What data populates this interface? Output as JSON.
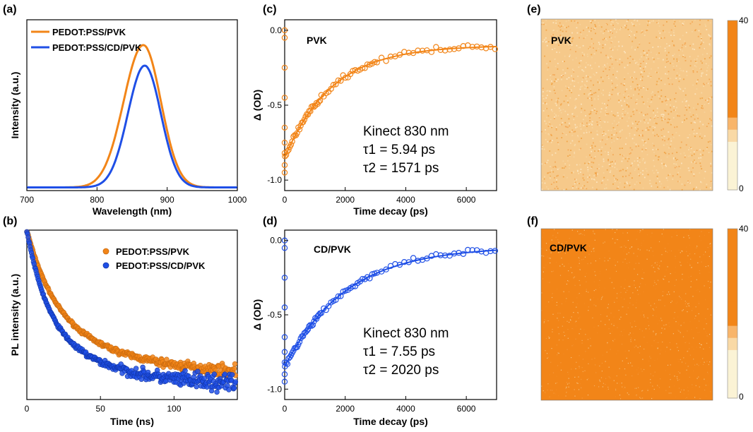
{
  "panels": {
    "a": {
      "label": "(a)",
      "chart_data": {
        "type": "line",
        "xlabel": "Wavelength (nm)",
        "ylabel": "Intensity (a.u.)",
        "xlim": [
          700,
          1000
        ],
        "ylim": [
          0,
          1.08
        ],
        "xticks": [
          "700",
          "800",
          "900",
          "1000"
        ],
        "legend_position": "top-left",
        "series": [
          {
            "name": "PEDOT:PSS/PVK",
            "color": "#f28518",
            "peak": 866,
            "width_left": 28,
            "width_right": 25,
            "amplitude": 0.9
          },
          {
            "name": "PEDOT:PSS/CD/PVK",
            "color": "#1f4fe6",
            "peak": 868,
            "width_left": 24,
            "width_right": 23,
            "amplitude": 0.77
          }
        ]
      }
    },
    "b": {
      "label": "(b)",
      "chart_data": {
        "type": "scatter",
        "xlabel": "Time (ns)",
        "ylabel": "PL intensity (a.u.)",
        "xlim": [
          0,
          143
        ],
        "ylim": [
          0,
          1.0
        ],
        "xticks": [
          "0",
          "50",
          "100"
        ],
        "legend_position": "top-right",
        "series": [
          {
            "name": "PEDOT:PSS/PVK",
            "color": "#f28518",
            "decay": [
              [
                0.55,
                18
              ],
              [
                0.45,
                60
              ]
            ],
            "floor": 0.13
          },
          {
            "name": "PEDOT:PSS/CD/PVK",
            "color": "#1f4fe6",
            "decay": [
              [
                0.6,
                14
              ],
              [
                0.4,
                50
              ]
            ],
            "floor": 0.07
          }
        ]
      }
    },
    "c": {
      "label": "(c)",
      "tag": "PVK",
      "note": [
        "Kinect 830 nm",
        "τ1 = 5.94 ps",
        "τ2 = 1571 ps"
      ],
      "chart_data": {
        "type": "scatter",
        "xlabel": "Time decay (ps)",
        "ylabel": "Δ (OD)",
        "xlim": [
          0,
          7000
        ],
        "ylim": [
          -1.07,
          0.07
        ],
        "xticks": [
          "0",
          "2000",
          "4000",
          "6000"
        ],
        "yticks": [
          "-1.0",
          "-0.5",
          "0.0"
        ],
        "series": [
          {
            "name": "",
            "color": "#f28518",
            "start": -0.85,
            "end": -0.1,
            "tau": 1571
          }
        ]
      }
    },
    "d": {
      "label": "(d)",
      "tag": "CD/PVK",
      "note": [
        "Kinect 830 nm",
        "τ1 = 7.55 ps",
        "τ2 = 2020 ps"
      ],
      "chart_data": {
        "type": "scatter",
        "xlabel": "Time decay (ps)",
        "ylabel": "Δ (OD)",
        "xlim": [
          0,
          7000
        ],
        "ylim": [
          -1.07,
          0.07
        ],
        "xticks": [
          "0",
          "2000",
          "4000",
          "6000"
        ],
        "yticks": [
          "-1.0",
          "-0.5",
          "0.0"
        ],
        "series": [
          {
            "name": "",
            "color": "#1f4fe6",
            "start": -0.85,
            "end": -0.04,
            "tau": 2020
          }
        ]
      }
    },
    "e": {
      "label": "(e)",
      "tag": "PVK",
      "chart_data": {
        "type": "heatmap",
        "base_color": "#f6c98a",
        "colorbar": {
          "min": "0",
          "max": "40",
          "colors": [
            "#fbf3d5",
            "#f9d9a6",
            "#f8b56b",
            "#f58d26",
            "#f28518"
          ]
        }
      }
    },
    "f": {
      "label": "(f)",
      "tag": "CD/PVK",
      "chart_data": {
        "type": "heatmap",
        "base_color": "#f28518",
        "colorbar": {
          "min": "0",
          "max": "40",
          "colors": [
            "#fbf3d5",
            "#f9d9a6",
            "#f8b56b",
            "#f58d26",
            "#f28518"
          ]
        }
      }
    }
  }
}
